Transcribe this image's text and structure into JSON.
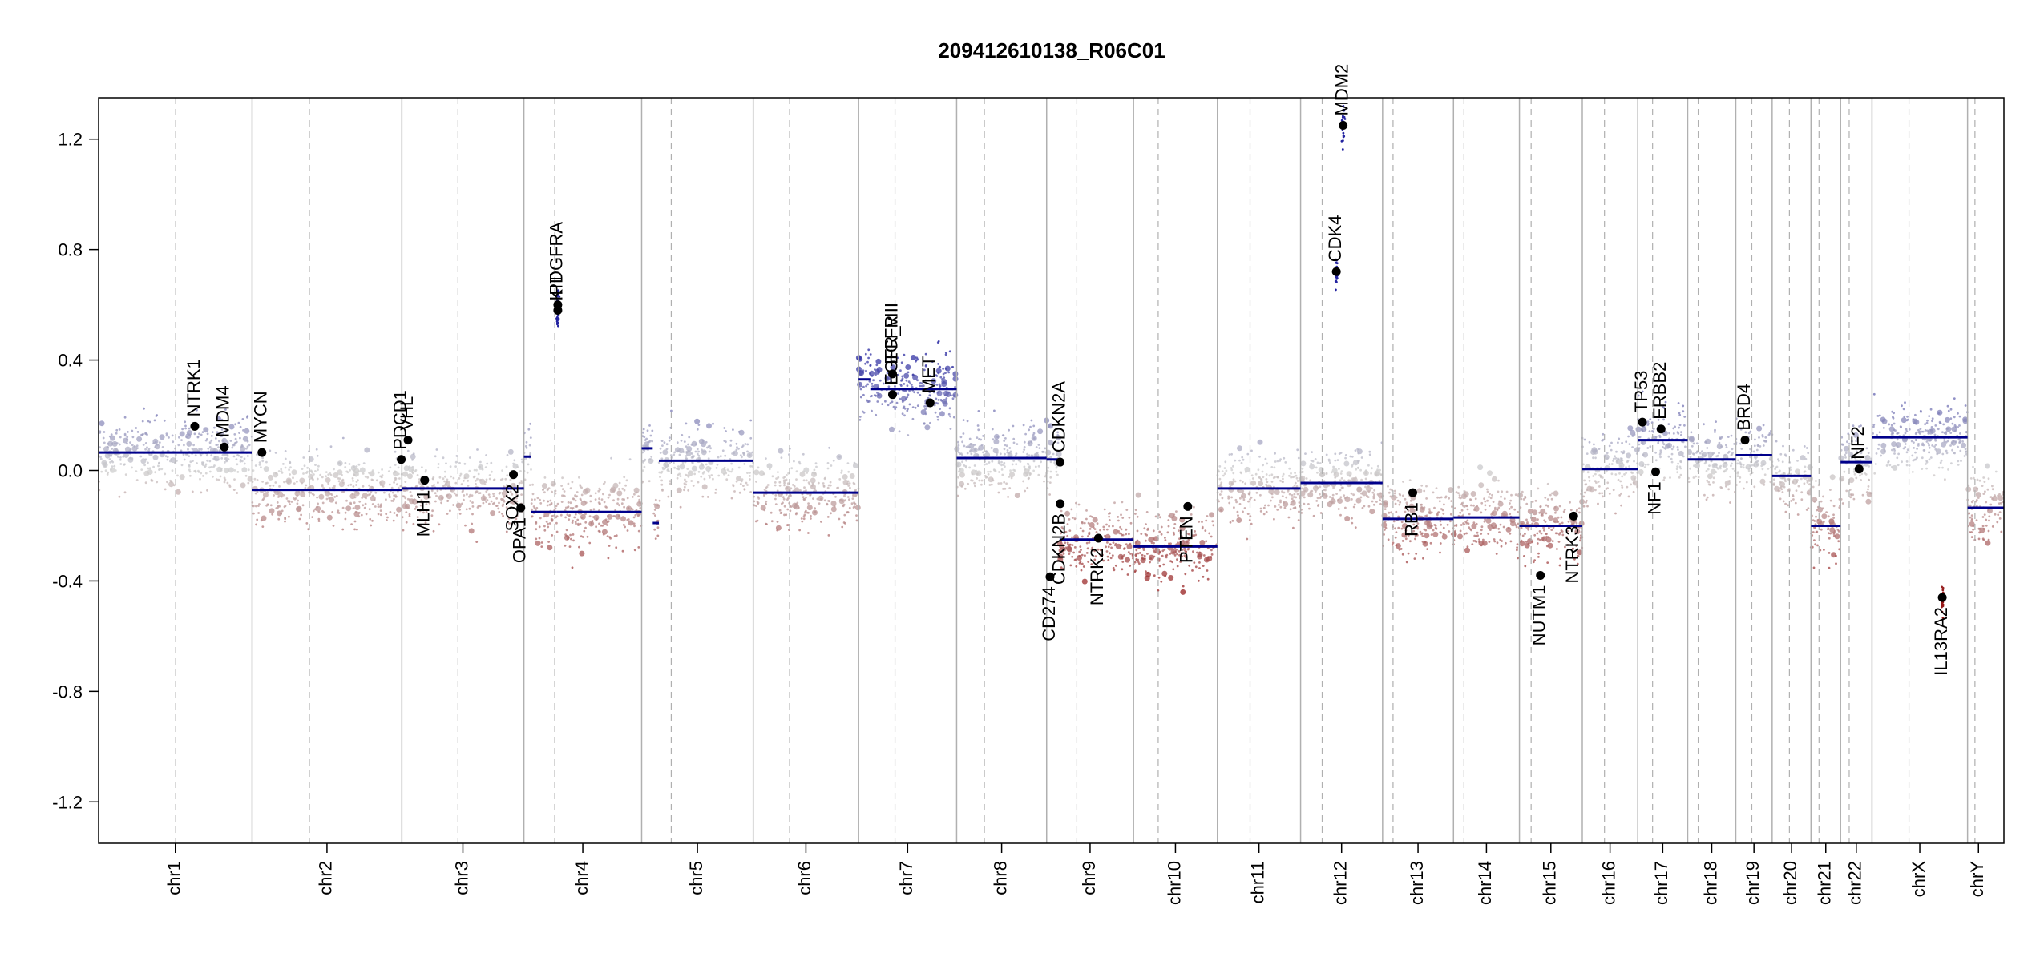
{
  "chart_data": {
    "type": "scatter",
    "title": "209412610138_R06C01",
    "xlabel": "",
    "ylabel": "",
    "ylim": [
      -1.35,
      1.35
    ],
    "y_ticks": [
      "1.2",
      "0.8",
      "0.4",
      "0.0",
      "-0.4",
      "-0.8",
      "-1.2"
    ],
    "grid": false,
    "colors": {
      "gain": "#2a2aa0",
      "loss": "#9a2020",
      "neutral": "#c8c8c8",
      "segment": "#00008b",
      "gene_dot": "#000000",
      "boundary": "#b0b0b0"
    },
    "chromosomes": [
      {
        "name": "chr1",
        "size": 249
      },
      {
        "name": "chr2",
        "size": 243
      },
      {
        "name": "chr3",
        "size": 198
      },
      {
        "name": "chr4",
        "size": 191
      },
      {
        "name": "chr5",
        "size": 181
      },
      {
        "name": "chr6",
        "size": 171
      },
      {
        "name": "chr7",
        "size": 159
      },
      {
        "name": "chr8",
        "size": 146
      },
      {
        "name": "chr9",
        "size": 141
      },
      {
        "name": "chr10",
        "size": 136
      },
      {
        "name": "chr11",
        "size": 135
      },
      {
        "name": "chr12",
        "size": 133
      },
      {
        "name": "chr13",
        "size": 115
      },
      {
        "name": "chr14",
        "size": 107
      },
      {
        "name": "chr15",
        "size": 102
      },
      {
        "name": "chr16",
        "size": 90
      },
      {
        "name": "chr17",
        "size": 81
      },
      {
        "name": "chr18",
        "size": 78
      },
      {
        "name": "chr19",
        "size": 59
      },
      {
        "name": "chr20",
        "size": 63
      },
      {
        "name": "chr21",
        "size": 48
      },
      {
        "name": "chr22",
        "size": 51
      },
      {
        "name": "chrX",
        "size": 155
      },
      {
        "name": "chrY",
        "size": 59
      }
    ],
    "centromeres": [
      {
        "chr": "chr1",
        "pos": 125
      },
      {
        "chr": "chr2",
        "pos": 93
      },
      {
        "chr": "chr3",
        "pos": 91
      },
      {
        "chr": "chr4",
        "pos": 50
      },
      {
        "chr": "chr5",
        "pos": 48
      },
      {
        "chr": "chr6",
        "pos": 59
      },
      {
        "chr": "chr7",
        "pos": 59
      },
      {
        "chr": "chr8",
        "pos": 45
      },
      {
        "chr": "chr9",
        "pos": 49
      },
      {
        "chr": "chr10",
        "pos": 40
      },
      {
        "chr": "chr11",
        "pos": 53
      },
      {
        "chr": "chr12",
        "pos": 35
      },
      {
        "chr": "chr13",
        "pos": 17
      },
      {
        "chr": "chr14",
        "pos": 17
      },
      {
        "chr": "chr15",
        "pos": 19
      },
      {
        "chr": "chr16",
        "pos": 36
      },
      {
        "chr": "chr17",
        "pos": 24
      },
      {
        "chr": "chr18",
        "pos": 17
      },
      {
        "chr": "chr19",
        "pos": 26
      },
      {
        "chr": "chr20",
        "pos": 28
      },
      {
        "chr": "chr21",
        "pos": 13
      },
      {
        "chr": "chr22",
        "pos": 14
      },
      {
        "chrX": "chrX",
        "chr": "chrX",
        "pos": 60
      },
      {
        "chr": "chrY",
        "pos": 12
      }
    ],
    "segments": [
      {
        "chr": "chr1",
        "start": 0,
        "end": 249,
        "value": 0.065
      },
      {
        "chr": "chr2",
        "start": 0,
        "end": 243,
        "value": -0.07
      },
      {
        "chr": "chr3",
        "start": 0,
        "end": 198,
        "value": -0.065
      },
      {
        "chr": "chr4",
        "start": 0,
        "end": 12,
        "value": 0.05
      },
      {
        "chr": "chr4",
        "start": 12,
        "end": 53,
        "value": -0.15
      },
      {
        "chr": "chr4",
        "start": 53,
        "end": 191,
        "value": -0.15
      },
      {
        "chr": "chr5",
        "start": 0,
        "end": 18,
        "value": 0.08
      },
      {
        "chr": "chr5",
        "start": 18,
        "end": 28,
        "value": -0.19
      },
      {
        "chr": "chr5",
        "start": 28,
        "end": 181,
        "value": 0.035
      },
      {
        "chr": "chr6",
        "start": 0,
        "end": 171,
        "value": -0.08
      },
      {
        "chr": "chr7",
        "start": 0,
        "end": 19,
        "value": 0.33
      },
      {
        "chr": "chr7",
        "start": 19,
        "end": 159,
        "value": 0.295
      },
      {
        "chr": "chr8",
        "start": 0,
        "end": 146,
        "value": 0.045
      },
      {
        "chr": "chr9",
        "start": 0,
        "end": 21,
        "value": 0.04
      },
      {
        "chr": "chr9",
        "start": 21,
        "end": 141,
        "value": -0.25
      },
      {
        "chr": "chr10",
        "start": 0,
        "end": 136,
        "value": -0.275
      },
      {
        "chr": "chr11",
        "start": 0,
        "end": 135,
        "value": -0.065
      },
      {
        "chr": "chr12",
        "start": 0,
        "end": 133,
        "value": -0.045
      },
      {
        "chr": "chr13",
        "start": 0,
        "end": 115,
        "value": -0.175
      },
      {
        "chr": "chr14",
        "start": 0,
        "end": 107,
        "value": -0.17
      },
      {
        "chr": "chr15",
        "start": 0,
        "end": 102,
        "value": -0.2
      },
      {
        "chr": "chr16",
        "start": 0,
        "end": 90,
        "value": 0.005
      },
      {
        "chr": "chr17",
        "start": 0,
        "end": 81,
        "value": 0.11
      },
      {
        "chr": "chr18",
        "start": 0,
        "end": 78,
        "value": 0.04
      },
      {
        "chr": "chr19",
        "start": 0,
        "end": 59,
        "value": 0.055
      },
      {
        "chr": "chr20",
        "start": 0,
        "end": 63,
        "value": -0.02
      },
      {
        "chr": "chr21",
        "start": 0,
        "end": 48,
        "value": -0.2
      },
      {
        "chr": "chr22",
        "start": 0,
        "end": 51,
        "value": 0.03
      },
      {
        "chr": "chrX",
        "start": 0,
        "end": 155,
        "value": 0.12
      },
      {
        "chr": "chrY",
        "start": 0,
        "end": 59,
        "value": -0.135
      }
    ],
    "genes": [
      {
        "name": "NTRK1",
        "chr": "chr1",
        "pos": 156,
        "value": 0.16
      },
      {
        "name": "MDM4",
        "chr": "chr1",
        "pos": 204,
        "value": 0.085
      },
      {
        "name": "MYCN",
        "chr": "chr2",
        "pos": 16,
        "value": 0.065
      },
      {
        "name": "PDCD1",
        "chr": "chr2",
        "pos": 242,
        "value": 0.04
      },
      {
        "name": "VHL",
        "chr": "chr3",
        "pos": 10,
        "value": 0.11
      },
      {
        "name": "MLH1",
        "chr": "chr3",
        "pos": 37,
        "value": -0.035
      },
      {
        "name": "SOX2",
        "chr": "chr3",
        "pos": 181,
        "value": -0.015
      },
      {
        "name": "OPA1",
        "chr": "chr3",
        "pos": 193,
        "value": -0.135
      },
      {
        "name": "PDGFRA",
        "chr": "chr4",
        "pos": 55,
        "value": 0.6
      },
      {
        "name": "KIT",
        "chr": "chr4",
        "pos": 55,
        "value": 0.58
      },
      {
        "name": "EGFR",
        "chr": "chr7",
        "pos": 55,
        "value": 0.35
      },
      {
        "name": "EGFR_vIII",
        "chr": "chr7",
        "pos": 55,
        "value": 0.275
      },
      {
        "name": "MET",
        "chr": "chr7",
        "pos": 116,
        "value": 0.245
      },
      {
        "name": "CDKN2A",
        "chr": "chr9",
        "pos": 21.9,
        "value": 0.03
      },
      {
        "name": "CDKN2B",
        "chr": "chr9",
        "pos": 22,
        "value": -0.12
      },
      {
        "name": "CD274",
        "chr": "chr9",
        "pos": 5.5,
        "value": -0.385
      },
      {
        "name": "NTRK2",
        "chr": "chr9",
        "pos": 84,
        "value": -0.245
      },
      {
        "name": "PTEN",
        "chr": "chr10",
        "pos": 88,
        "value": -0.13
      },
      {
        "name": "CDK4",
        "chr": "chr12",
        "pos": 58,
        "value": 0.72
      },
      {
        "name": "MDM2",
        "chr": "chr12",
        "pos": 69,
        "value": 1.25
      },
      {
        "name": "RB1",
        "chr": "chr13",
        "pos": 49,
        "value": -0.08
      },
      {
        "name": "NUTM1",
        "chr": "chr15",
        "pos": 34,
        "value": -0.38
      },
      {
        "name": "NTRK3",
        "chr": "chr15",
        "pos": 88,
        "value": -0.165
      },
      {
        "name": "TP53",
        "chr": "chr17",
        "pos": 7.5,
        "value": 0.175
      },
      {
        "name": "NF1",
        "chr": "chr17",
        "pos": 29,
        "value": -0.005
      },
      {
        "name": "ERBB2",
        "chr": "chr17",
        "pos": 37.8,
        "value": 0.15
      },
      {
        "name": "BRD4",
        "chr": "chr19",
        "pos": 15,
        "value": 0.11
      },
      {
        "name": "NF2",
        "chr": "chr22",
        "pos": 30,
        "value": 0.005
      },
      {
        "name": "IL13RA2",
        "chr": "chrX",
        "pos": 114,
        "value": -0.46
      }
    ]
  }
}
